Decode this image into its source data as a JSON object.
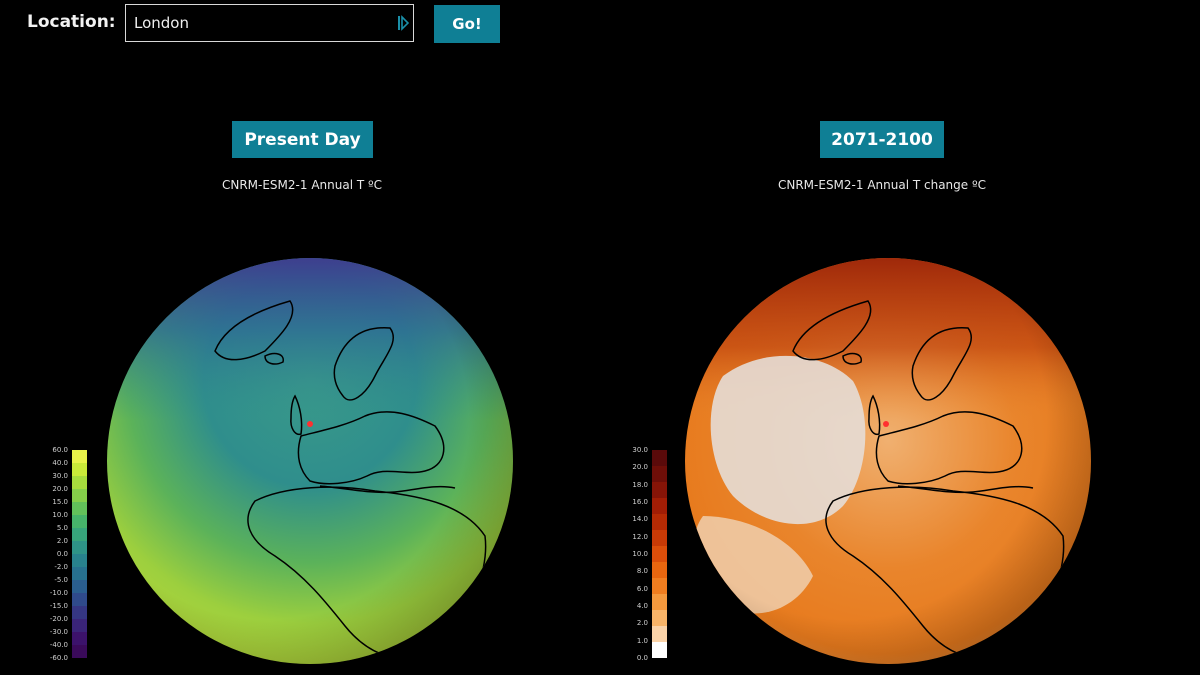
{
  "location": {
    "label": "Location:",
    "value": "London",
    "icon": "location-arrow-icon",
    "go_label": "Go!"
  },
  "panels": [
    {
      "button_label": "Present Day",
      "subtitle": "CNRM-ESM2-1 Annual T ºC",
      "colorbar": {
        "ticks": [
          "60.0",
          "40.0",
          "30.0",
          "20.0",
          "15.0",
          "10.0",
          "5.0",
          "2.0",
          "0.0",
          "-2.0",
          "-5.0",
          "-10.0",
          "-15.0",
          "-20.0",
          "-30.0",
          "-40.0",
          "-60.0"
        ],
        "colors": [
          "#e8f34a",
          "#c9ea39",
          "#a6dc3d",
          "#85cf4a",
          "#62c15a",
          "#46b36a",
          "#37a47b",
          "#2e9387",
          "#28828d",
          "#27718f",
          "#2a5e8f",
          "#2f4a8b",
          "#353683",
          "#3a2479",
          "#3c126b",
          "#3a0a5a"
        ]
      },
      "marker": "location-marker-icon"
    },
    {
      "button_label": "2071-2100",
      "subtitle": "CNRM-ESM2-1 Annual T change ºC",
      "colorbar": {
        "ticks": [
          "30.0",
          "20.0",
          "18.0",
          "16.0",
          "14.0",
          "12.0",
          "10.0",
          "8.0",
          "6.0",
          "4.0",
          "2.0",
          "1.0",
          "0.0"
        ],
        "colors": [
          "#5a0a0a",
          "#6e0e08",
          "#861407",
          "#a11d05",
          "#b52a04",
          "#c83a06",
          "#db4e0a",
          "#e8660f",
          "#f07d1f",
          "#f5993d",
          "#f8b468",
          "#fbd3a8",
          "#ffffff"
        ]
      },
      "marker": "location-marker-icon"
    }
  ]
}
